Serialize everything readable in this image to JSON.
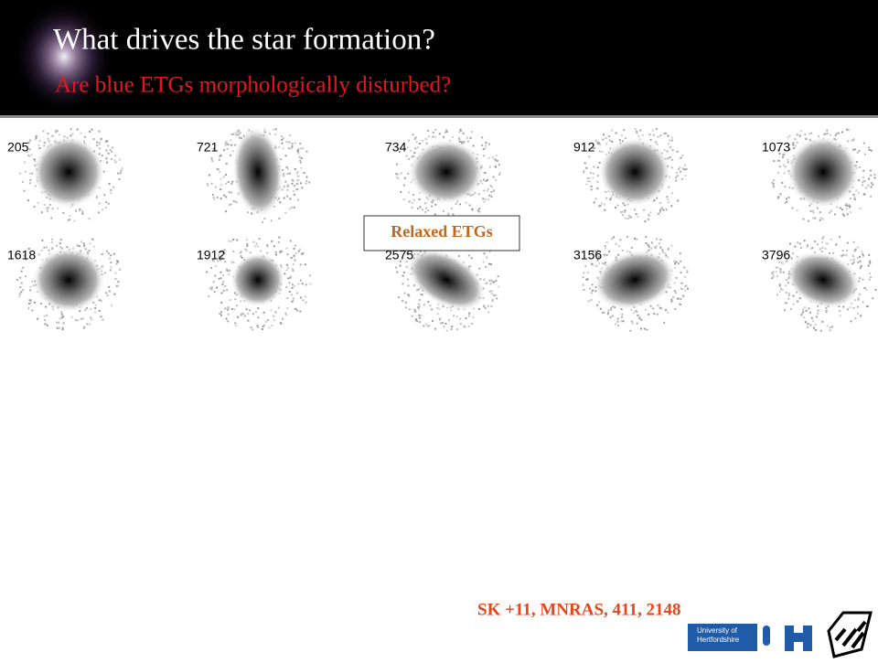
{
  "header": {
    "title": "What drives the star formation?",
    "subtitle": "Are blue ETGs morphologically disturbed?"
  },
  "galaxies": [
    "205",
    "721",
    "734",
    "912",
    "1073",
    "1618",
    "1912",
    "2575",
    "3156",
    "3796"
  ],
  "badge": "Relaxed ETGs",
  "citation": "SK +11, MNRAS, 411, 2148",
  "logo": {
    "line1": "University of",
    "line2": "Hertfordshire"
  }
}
